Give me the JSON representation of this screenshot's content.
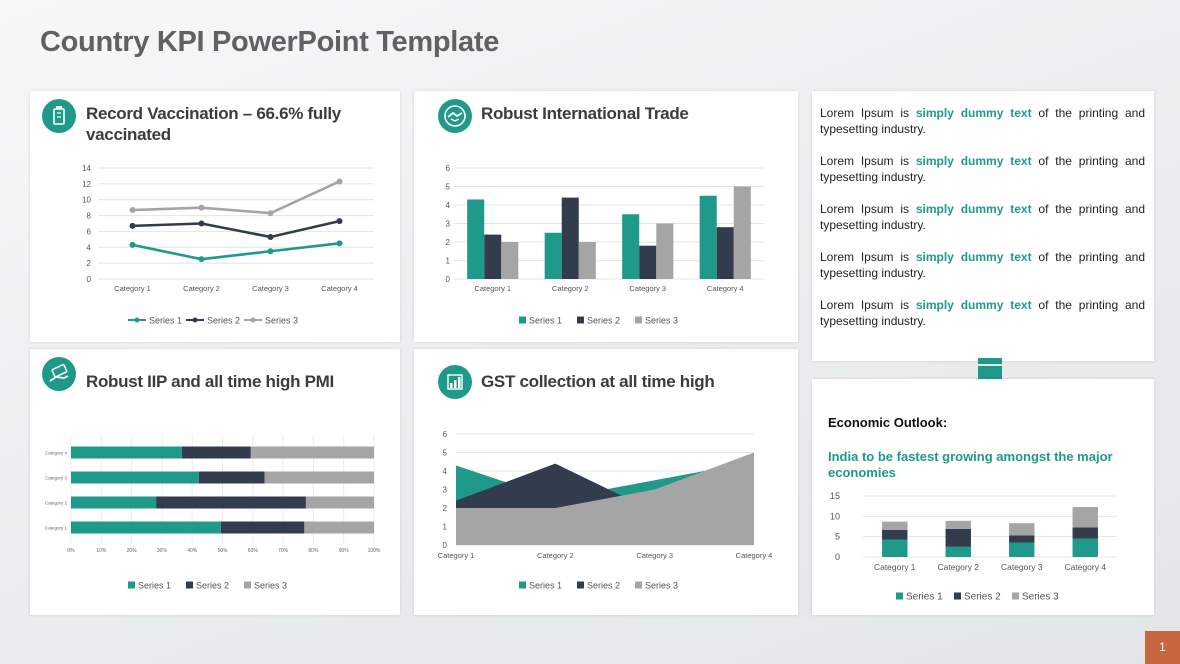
{
  "page": {
    "title": "Country KPI PowerPoint Template",
    "page_number": "1"
  },
  "colors": {
    "series1": "#1f9a8a",
    "series2": "#323c4c",
    "series3": "#a5a5a5",
    "accent": "#1f9a8a",
    "page_badge": "#c8673f"
  },
  "panels": {
    "vaccination": {
      "title": "Record Vaccination – 66.6%  fully vaccinated",
      "icon": "vaccine-icon"
    },
    "trade": {
      "title": "Robust International Trade",
      "icon": "handshake-icon"
    },
    "iip": {
      "title": "Robust IIP and all time high PMI",
      "icon": "money-hand-icon"
    },
    "gst": {
      "title": "GST collection at all time high",
      "icon": "bar-chart-icon"
    }
  },
  "lorem": {
    "items": [
      {
        "before": "Lorem Ipsum is ",
        "highlight": "simply dummy text",
        "after": " of the printing and typesetting industry."
      },
      {
        "before": "Lorem Ipsum is ",
        "highlight": "simply dummy text",
        "after": " of the printing and typesetting industry."
      },
      {
        "before": "Lorem Ipsum is ",
        "highlight": "simply dummy text",
        "after": " of the printing and typesetting industry."
      },
      {
        "before": "Lorem Ipsum is ",
        "highlight": "simply dummy text",
        "after": " of the printing and typesetting industry."
      },
      {
        "before": "Lorem Ipsum is ",
        "highlight": "simply dummy text",
        "after": " of the printing and typesetting industry."
      }
    ]
  },
  "economic": {
    "heading": "Economic Outlook:",
    "subheading": "India to be fastest growing amongst the major economies"
  },
  "chart_data": [
    {
      "id": "vaccination",
      "type": "line",
      "categories": [
        "Category 1",
        "Category 2",
        "Category 3",
        "Category 4"
      ],
      "series": [
        {
          "name": "Series 1",
          "values": [
            4.3,
            2.5,
            3.5,
            4.5
          ]
        },
        {
          "name": "Series 2",
          "values": [
            6.7,
            7.0,
            5.3,
            7.3
          ]
        },
        {
          "name": "Series 3",
          "values": [
            8.7,
            9.0,
            8.3,
            12.3
          ]
        }
      ],
      "yticks": [
        "0",
        "2",
        "4",
        "6",
        "8",
        "10",
        "12",
        "14"
      ],
      "ylim": [
        0,
        14
      ],
      "grid": true,
      "legend": "bottom"
    },
    {
      "id": "trade",
      "type": "bar",
      "categories": [
        "Category 1",
        "Category 2",
        "Category 3",
        "Category 4"
      ],
      "series": [
        {
          "name": "Series 1",
          "values": [
            4.3,
            2.5,
            3.5,
            4.5
          ]
        },
        {
          "name": "Series 2",
          "values": [
            2.4,
            4.4,
            1.8,
            2.8
          ]
        },
        {
          "name": "Series 3",
          "values": [
            2,
            2,
            3,
            5
          ]
        }
      ],
      "yticks": [
        "0",
        "1",
        "2",
        "3",
        "4",
        "5",
        "6"
      ],
      "ylim": [
        0,
        6
      ],
      "grid": true,
      "legend": "bottom"
    },
    {
      "id": "iip",
      "type": "bar",
      "orientation": "horizontal",
      "stacking": "percent",
      "categories": [
        "Category 1",
        "Category 2",
        "Category 3",
        "Category 4"
      ],
      "series": [
        {
          "name": "Series 1",
          "values": [
            4.3,
            2.5,
            3.5,
            4.5
          ]
        },
        {
          "name": "Series 2",
          "values": [
            2.4,
            4.4,
            1.8,
            2.8
          ]
        },
        {
          "name": "Series 3",
          "values": [
            2,
            2,
            3,
            5
          ]
        }
      ],
      "xticks": [
        "0%",
        "10%",
        "20%",
        "30%",
        "40%",
        "50%",
        "60%",
        "70%",
        "80%",
        "90%",
        "100%"
      ],
      "legend": "bottom"
    },
    {
      "id": "gst",
      "type": "area",
      "categories": [
        "Category 1",
        "Category 2",
        "Category 3",
        "Category 4"
      ],
      "series": [
        {
          "name": "Series 1",
          "values": [
            4.3,
            2.5,
            3.5,
            4.5
          ]
        },
        {
          "name": "Series 2",
          "values": [
            2.4,
            4.4,
            1.8,
            2.8
          ]
        },
        {
          "name": "Series 3",
          "values": [
            2,
            2,
            3,
            5
          ]
        }
      ],
      "yticks": [
        "0",
        "1",
        "2",
        "3",
        "4",
        "5",
        "6"
      ],
      "ylim": [
        0,
        6
      ],
      "grid": true,
      "legend": "bottom"
    },
    {
      "id": "economic",
      "type": "bar",
      "stacking": "stacked",
      "categories": [
        "Category 1",
        "Category 2",
        "Category 3",
        "Category 4"
      ],
      "series": [
        {
          "name": "Series 1",
          "values": [
            4.3,
            2.5,
            3.5,
            4.5
          ]
        },
        {
          "name": "Series 2",
          "values": [
            2.4,
            4.4,
            1.8,
            2.8
          ]
        },
        {
          "name": "Series 3",
          "values": [
            2,
            2,
            3,
            5
          ]
        }
      ],
      "yticks": [
        "0",
        "5",
        "10",
        "15"
      ],
      "ylim": [
        0,
        15
      ],
      "grid": true,
      "legend": "bottom"
    }
  ]
}
